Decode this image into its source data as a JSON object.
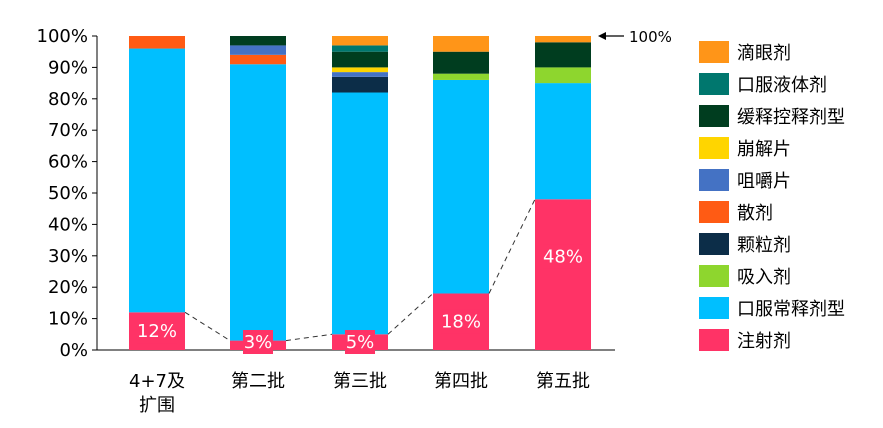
{
  "chart_data": {
    "type": "bar",
    "stacked": true,
    "ylim": [
      0,
      100
    ],
    "yticks": [
      0,
      10,
      20,
      30,
      40,
      50,
      60,
      70,
      80,
      90,
      100
    ],
    "ytick_suffix": "%",
    "grid": false,
    "legend_position": "right",
    "categories": [
      [
        "4+7及",
        "扩围"
      ],
      [
        "第二批"
      ],
      [
        "第三批"
      ],
      [
        "第四批"
      ],
      [
        "第五批"
      ]
    ],
    "series": [
      {
        "name": "注射剂",
        "color": "#FF3366",
        "values": [
          12,
          3,
          5,
          18,
          48
        ]
      },
      {
        "name": "口服常释剂型",
        "color": "#00BFFF",
        "values": [
          84,
          88,
          77,
          68,
          37
        ]
      },
      {
        "name": "吸入剂",
        "color": "#8ED62E",
        "values": [
          0,
          0,
          0,
          2,
          5
        ]
      },
      {
        "name": "颗粒剂",
        "color": "#0C2D48",
        "values": [
          0,
          0,
          5,
          0,
          0
        ]
      },
      {
        "name": "散剂",
        "color": "#FF5B14",
        "values": [
          4,
          3,
          0,
          0,
          0
        ]
      },
      {
        "name": "咀嚼片",
        "color": "#4472C4",
        "values": [
          0,
          3,
          1.5,
          0,
          0
        ]
      },
      {
        "name": "崩解片",
        "color": "#FFD500",
        "values": [
          0,
          0,
          1.5,
          0,
          0
        ]
      },
      {
        "name": "缓释控释剂型",
        "color": "#003D1F",
        "values": [
          0,
          3,
          5,
          7,
          8
        ]
      },
      {
        "name": "口服液体剂",
        "color": "#00776E",
        "values": [
          0,
          0,
          2,
          0,
          0
        ]
      },
      {
        "name": "滴眼剂",
        "color": "#FF9518",
        "values": [
          0,
          0,
          3,
          5,
          2
        ]
      }
    ],
    "data_labels": [
      "12%",
      "3%",
      "5%",
      "18%",
      "48%"
    ],
    "legend_order": [
      "滴眼剂",
      "口服液体剂",
      "缓释控释剂型",
      "崩解片",
      "咀嚼片",
      "散剂",
      "颗粒剂",
      "吸入剂",
      "口服常释剂型",
      "注射剂"
    ],
    "annotation": {
      "text": "100%",
      "value": 100
    }
  }
}
